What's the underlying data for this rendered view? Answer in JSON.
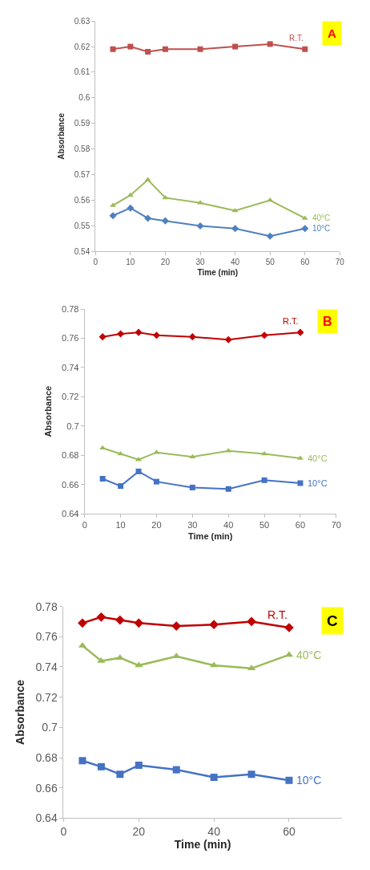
{
  "chart_data": [
    {
      "type": "line",
      "annotations": [
        "A"
      ],
      "xlabel": "Time (min)",
      "ylabel": "Absorbance",
      "x": [
        5,
        10,
        15,
        20,
        30,
        40,
        50,
        60
      ],
      "xlim": [
        0,
        70
      ],
      "xticks": [
        0,
        10,
        20,
        30,
        40,
        50,
        60,
        70
      ],
      "ylim": [
        0.54,
        0.63
      ],
      "yticks": [
        0.54,
        0.55,
        0.56,
        0.57,
        0.58,
        0.59,
        0.6,
        0.61,
        0.62,
        0.63
      ],
      "line_style": "solid",
      "series": [
        {
          "name": "R.T.",
          "color": "#c0504d",
          "marker": "square",
          "values": [
            0.619,
            0.62,
            0.618,
            0.619,
            0.619,
            0.62,
            0.621,
            0.619
          ]
        },
        {
          "name": "40°C",
          "color": "#9bbb59",
          "marker": "triangle",
          "values": [
            0.558,
            0.562,
            0.568,
            0.561,
            0.559,
            0.556,
            0.56,
            0.553
          ]
        },
        {
          "name": "10°C",
          "color": "#4f81bd",
          "marker": "diamond",
          "values": [
            0.554,
            0.557,
            0.553,
            0.552,
            0.55,
            0.549,
            0.546,
            0.549
          ]
        }
      ]
    },
    {
      "type": "line",
      "annotations": [
        "B"
      ],
      "xlabel": "Time (min)",
      "ylabel": "Absorbance",
      "x": [
        5,
        10,
        15,
        20,
        30,
        40,
        50,
        60
      ],
      "xlim": [
        0,
        70
      ],
      "xticks": [
        0,
        10,
        20,
        30,
        40,
        50,
        60,
        70
      ],
      "ylim": [
        0.64,
        0.78
      ],
      "yticks": [
        0.64,
        0.66,
        0.68,
        0.7,
        0.72,
        0.74,
        0.76,
        0.78
      ],
      "line_style": "solid",
      "series": [
        {
          "name": "R.T.",
          "color": "#c00000",
          "marker": "diamond",
          "values": [
            0.761,
            0.763,
            0.764,
            0.762,
            0.761,
            0.759,
            0.762,
            0.764
          ]
        },
        {
          "name": "40°C",
          "color": "#9bbb59",
          "marker": "triangle",
          "values": [
            0.685,
            0.681,
            0.677,
            0.682,
            0.679,
            0.683,
            0.681,
            0.678
          ]
        },
        {
          "name": "10°C",
          "color": "#4472c4",
          "marker": "square",
          "values": [
            0.664,
            0.659,
            0.669,
            0.662,
            0.658,
            0.657,
            0.663,
            0.661
          ]
        }
      ]
    },
    {
      "type": "line",
      "annotations": [
        "C"
      ],
      "xlabel": "Time (min)",
      "ylabel": "Absorbance",
      "x": [
        5,
        10,
        15,
        20,
        30,
        40,
        50,
        60
      ],
      "xlim": [
        0,
        74
      ],
      "xticks": [
        0,
        20,
        40,
        60
      ],
      "ylim": [
        0.64,
        0.78
      ],
      "yticks": [
        0.64,
        0.66,
        0.68,
        0.7,
        0.72,
        0.74,
        0.76,
        0.78
      ],
      "line_style": "solid",
      "series": [
        {
          "name": "R.T.",
          "color": "#c00000",
          "marker": "diamond",
          "values": [
            0.769,
            0.773,
            0.771,
            0.769,
            0.767,
            0.768,
            0.77,
            0.766
          ]
        },
        {
          "name": "40°C",
          "color": "#9bbb59",
          "marker": "triangle",
          "values": [
            0.754,
            0.744,
            0.746,
            0.741,
            0.747,
            0.741,
            0.739,
            0.748
          ]
        },
        {
          "name": "10°C",
          "color": "#4472c4",
          "marker": "square",
          "values": [
            0.678,
            0.674,
            0.669,
            0.675,
            0.672,
            0.667,
            0.669,
            0.665
          ]
        }
      ]
    }
  ]
}
